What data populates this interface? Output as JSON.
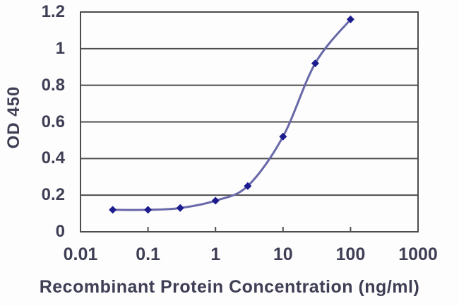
{
  "chart_data": {
    "type": "line",
    "title": "",
    "xlabel": "Recombinant Protein Concentration (ng/ml)",
    "ylabel": "OD 450",
    "x_scale": "log",
    "xlim": [
      0.01,
      1000
    ],
    "ylim": [
      0,
      1.2
    ],
    "x_ticks": [
      0.01,
      0.1,
      1,
      10,
      100,
      1000
    ],
    "x_tick_labels": [
      "0.01",
      "0.1",
      "1",
      "10",
      "100",
      "1000"
    ],
    "y_ticks": [
      0,
      0.2,
      0.4,
      0.6,
      0.8,
      1,
      1.2
    ],
    "y_tick_labels": [
      "0",
      "0.2",
      "0.4",
      "0.6",
      "0.8",
      "1",
      "1.2"
    ],
    "grid": "horizontal",
    "legend": "none",
    "series": [
      {
        "name": "OD 450",
        "marker": "diamond",
        "x": [
          0.03,
          0.1,
          0.3,
          1,
          3,
          10,
          30,
          100
        ],
        "values": [
          0.12,
          0.12,
          0.13,
          0.17,
          0.25,
          0.52,
          0.92,
          1.16
        ]
      }
    ],
    "colors": {
      "line": "#6868a8",
      "marker": "#1c1c8e",
      "grid": "#4d4d4d",
      "text": "#3e3e55",
      "background": "#fdfdfd"
    }
  }
}
